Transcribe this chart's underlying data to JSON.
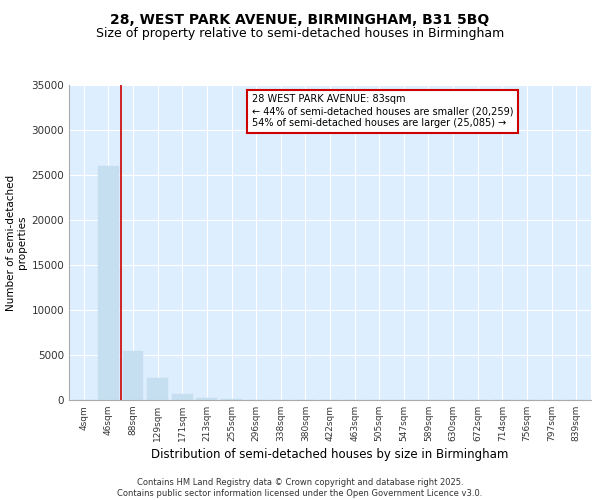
{
  "title_line1": "28, WEST PARK AVENUE, BIRMINGHAM, B31 5BQ",
  "title_line2": "Size of property relative to semi-detached houses in Birmingham",
  "xlabel": "Distribution of semi-detached houses by size in Birmingham",
  "ylabel": "Number of semi-detached\nproperties",
  "annotation_title": "28 WEST PARK AVENUE: 83sqm",
  "annotation_line2": "← 44% of semi-detached houses are smaller (20,259)",
  "annotation_line3": "54% of semi-detached houses are larger (25,085) →",
  "footer_line1": "Contains HM Land Registry data © Crown copyright and database right 2025.",
  "footer_line2": "Contains public sector information licensed under the Open Government Licence v3.0.",
  "categories": [
    "4sqm",
    "46sqm",
    "88sqm",
    "129sqm",
    "171sqm",
    "213sqm",
    "255sqm",
    "296sqm",
    "338sqm",
    "380sqm",
    "422sqm",
    "463sqm",
    "505sqm",
    "547sqm",
    "589sqm",
    "630sqm",
    "672sqm",
    "714sqm",
    "756sqm",
    "797sqm",
    "839sqm"
  ],
  "values": [
    0,
    26000,
    5500,
    2500,
    700,
    200,
    100,
    50,
    20,
    10,
    5,
    3,
    2,
    1,
    1,
    0,
    0,
    0,
    0,
    0,
    0
  ],
  "bar_color": "#c6dff0",
  "vline_color": "#cc0000",
  "ylim": [
    0,
    35000
  ],
  "yticks": [
    0,
    5000,
    10000,
    15000,
    20000,
    25000,
    30000,
    35000
  ],
  "background_color": "#ddeeff",
  "grid_color": "#ffffff",
  "title_fontsize": 10,
  "subtitle_fontsize": 9
}
